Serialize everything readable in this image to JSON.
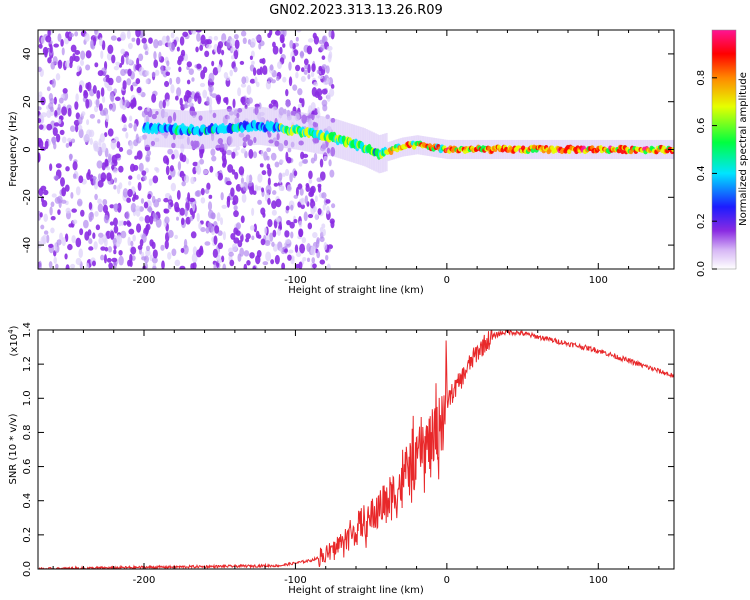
{
  "figure": {
    "title": "GN02.2023.313.13.26.R09"
  },
  "chart_data": [
    {
      "type": "heatmap",
      "xlabel": "Height of straight line (km)",
      "ylabel": "Frequency (Hz)",
      "xlim": [
        -270,
        150
      ],
      "ylim": [
        -50,
        50
      ],
      "x_ticks": [
        -200,
        -100,
        0,
        100
      ],
      "y_ticks": [
        -40,
        -20,
        0,
        20,
        40
      ],
      "colorbar": {
        "label": "Normalized spectral amplitude",
        "range": [
          0.0,
          1.0
        ],
        "ticks": [
          "0.0",
          "0.2",
          "0.4",
          "0.6",
          "0.8"
        ],
        "colormap": [
          "#ffffff",
          "#8a2be2",
          "#1c1cff",
          "#00e5ff",
          "#00ff40",
          "#e6ff00",
          "#ff8800",
          "#ff0000",
          "#ff1493"
        ]
      },
      "ridge": {
        "x": [
          -190,
          -165,
          -125,
          -100,
          -75,
          -55,
          -45,
          -30,
          -20,
          0,
          40,
          90,
          150
        ],
        "frequency": [
          9,
          8,
          10,
          8,
          5,
          1,
          -2,
          1,
          2,
          0,
          0,
          0,
          0
        ]
      },
      "noise_extent_x": [
        -270,
        -90
      ]
    },
    {
      "type": "line",
      "xlabel": "Height of straight line (km)",
      "ylabel": "SNR (10 * v/v)",
      "y_multiplier": "(x10",
      "y_multiplier_exp": "4",
      "y_multiplier_close": ")",
      "xlim": [
        -270,
        150
      ],
      "ylim": [
        0,
        1.4
      ],
      "x_ticks": [
        -200,
        -100,
        0,
        100
      ],
      "y_ticks": [
        "0.0",
        "0.2",
        "0.4",
        "0.6",
        "0.8",
        "1.0",
        "1.2",
        "1.4"
      ],
      "line_color": "#e8282a",
      "series": [
        {
          "x": [
            -270,
            -200,
            -150,
            -110,
            -90,
            -80,
            -70,
            -65,
            -60,
            -55,
            -50,
            -45,
            -40,
            -35,
            -30,
            -25,
            -20,
            -15,
            -10,
            -5,
            0,
            5,
            10,
            15,
            20,
            25,
            30,
            35,
            40,
            50,
            60,
            70,
            80,
            90,
            100,
            110,
            120,
            130,
            140,
            150
          ],
          "values": [
            0.0,
            0.01,
            0.015,
            0.02,
            0.05,
            0.08,
            0.15,
            0.2,
            0.22,
            0.25,
            0.3,
            0.35,
            0.4,
            0.45,
            0.5,
            0.6,
            0.65,
            0.7,
            0.75,
            0.85,
            0.98,
            1.05,
            1.12,
            1.2,
            1.27,
            1.32,
            1.36,
            1.38,
            1.39,
            1.38,
            1.36,
            1.34,
            1.32,
            1.3,
            1.28,
            1.25,
            1.22,
            1.19,
            1.16,
            1.13
          ]
        }
      ]
    }
  ]
}
